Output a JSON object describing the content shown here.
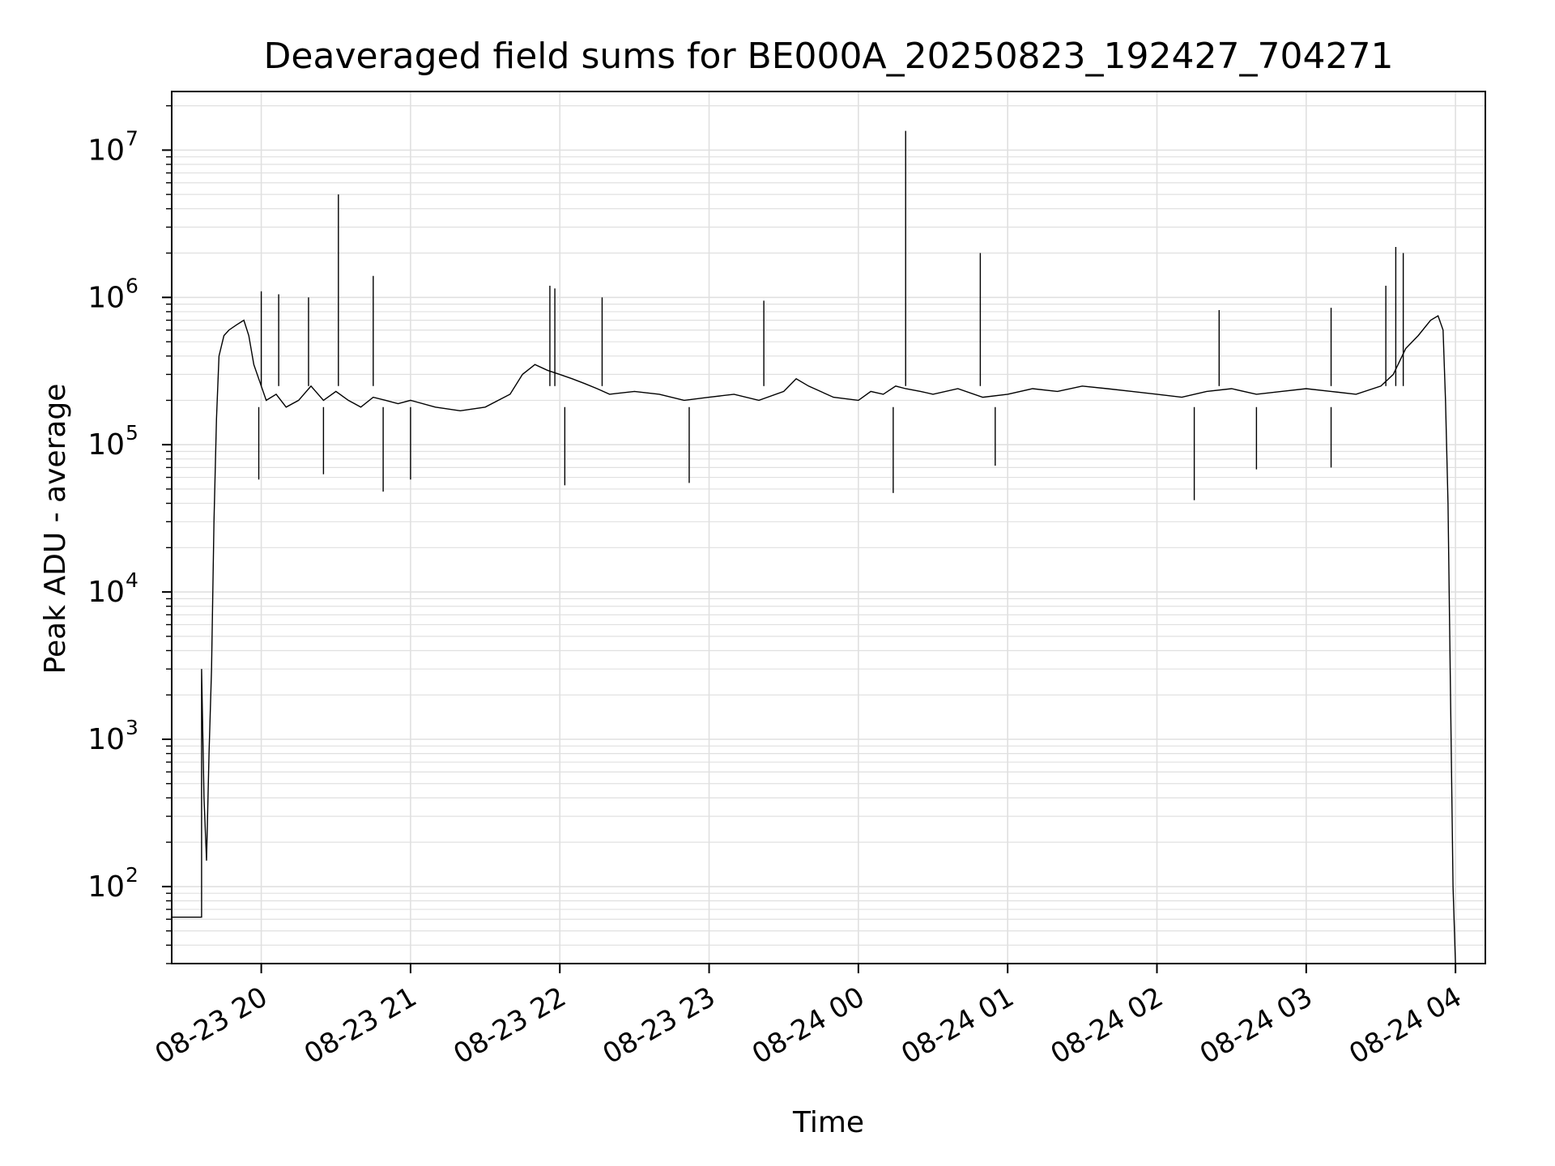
{
  "chart_data": {
    "type": "line",
    "title": "Deaveraged field sums for BE000A_20250823_192427_704271",
    "xlabel": "Time",
    "ylabel": "Peak ADU - average",
    "yscale": "log",
    "xlim": [
      "2025-08-23 19:24",
      "2025-08-24 04:12"
    ],
    "ylim": [
      30,
      25000000
    ],
    "grid": true,
    "line_color": "#000000",
    "grid_color": "#e0e0e0",
    "x_ticks": [
      {
        "value": "2025-08-23 20:00",
        "label": "08-23 20"
      },
      {
        "value": "2025-08-23 21:00",
        "label": "08-23 21"
      },
      {
        "value": "2025-08-23 22:00",
        "label": "08-23 22"
      },
      {
        "value": "2025-08-23 23:00",
        "label": "08-23 23"
      },
      {
        "value": "2025-08-24 00:00",
        "label": "08-24 00"
      },
      {
        "value": "2025-08-24 01:00",
        "label": "08-24 01"
      },
      {
        "value": "2025-08-24 02:00",
        "label": "08-24 02"
      },
      {
        "value": "2025-08-24 03:00",
        "label": "08-24 03"
      },
      {
        "value": "2025-08-24 04:00",
        "label": "08-24 04"
      }
    ],
    "y_ticks": [
      {
        "value": 100,
        "base": "10",
        "exp": "2"
      },
      {
        "value": 1000,
        "base": "10",
        "exp": "3"
      },
      {
        "value": 10000,
        "base": "10",
        "exp": "4"
      },
      {
        "value": 100000,
        "base": "10",
        "exp": "5"
      },
      {
        "value": 1000000,
        "base": "10",
        "exp": "6"
      },
      {
        "value": 10000000,
        "base": "10",
        "exp": "7"
      }
    ],
    "series": [
      {
        "x": [
          "2025-08-23 19:24",
          "2025-08-23 19:36",
          "2025-08-23 19:36",
          "2025-08-23 19:37",
          "2025-08-23 19:38",
          "2025-08-23 19:39",
          "2025-08-23 19:40",
          "2025-08-23 19:41",
          "2025-08-23 19:42",
          "2025-08-23 19:43",
          "2025-08-23 19:45",
          "2025-08-23 19:47",
          "2025-08-23 19:50",
          "2025-08-23 19:53",
          "2025-08-23 19:55",
          "2025-08-23 19:57",
          "2025-08-23 20:00",
          "2025-08-23 20:02",
          "2025-08-23 20:06",
          "2025-08-23 20:10",
          "2025-08-23 20:15",
          "2025-08-23 20:20",
          "2025-08-23 20:25",
          "2025-08-23 20:30",
          "2025-08-23 20:35",
          "2025-08-23 20:40",
          "2025-08-23 20:45",
          "2025-08-23 20:50",
          "2025-08-23 20:55",
          "2025-08-23 21:00",
          "2025-08-23 21:10",
          "2025-08-23 21:20",
          "2025-08-23 21:30",
          "2025-08-23 21:40",
          "2025-08-23 21:45",
          "2025-08-23 21:50",
          "2025-08-23 21:55",
          "2025-08-23 22:00",
          "2025-08-23 22:05",
          "2025-08-23 22:10",
          "2025-08-23 22:15",
          "2025-08-23 22:20",
          "2025-08-23 22:30",
          "2025-08-23 22:40",
          "2025-08-23 22:50",
          "2025-08-23 23:00",
          "2025-08-23 23:10",
          "2025-08-23 23:20",
          "2025-08-23 23:30",
          "2025-08-23 23:35",
          "2025-08-23 23:40",
          "2025-08-23 23:50",
          "2025-08-24 00:00",
          "2025-08-24 00:05",
          "2025-08-24 00:10",
          "2025-08-24 00:15",
          "2025-08-24 00:19",
          "2025-08-24 00:25",
          "2025-08-24 00:30",
          "2025-08-24 00:40",
          "2025-08-24 00:50",
          "2025-08-24 01:00",
          "2025-08-24 01:10",
          "2025-08-24 01:20",
          "2025-08-24 01:30",
          "2025-08-24 01:40",
          "2025-08-24 01:50",
          "2025-08-24 02:00",
          "2025-08-24 02:10",
          "2025-08-24 02:20",
          "2025-08-24 02:30",
          "2025-08-24 02:40",
          "2025-08-24 02:50",
          "2025-08-24 03:00",
          "2025-08-24 03:10",
          "2025-08-24 03:20",
          "2025-08-24 03:30",
          "2025-08-24 03:35",
          "2025-08-24 03:40",
          "2025-08-24 03:45",
          "2025-08-24 03:50",
          "2025-08-24 03:53",
          "2025-08-24 03:55",
          "2025-08-24 03:56",
          "2025-08-24 03:57",
          "2025-08-24 03:58",
          "2025-08-24 03:59",
          "2025-08-24 04:00"
        ],
        "y": [
          62,
          62,
          3000,
          400,
          150,
          800,
          3000,
          30000,
          150000,
          400000,
          550000,
          600000,
          650000,
          700000,
          550000,
          350000,
          250000,
          200000,
          220000,
          180000,
          200000,
          250000,
          200000,
          230000,
          200000,
          180000,
          210000,
          200000,
          190000,
          200000,
          180000,
          170000,
          180000,
          220000,
          300000,
          350000,
          320000,
          300000,
          280000,
          260000,
          240000,
          220000,
          230000,
          220000,
          200000,
          210000,
          220000,
          200000,
          230000,
          280000,
          250000,
          210000,
          200000,
          230000,
          220000,
          250000,
          240000,
          230000,
          220000,
          240000,
          210000,
          220000,
          240000,
          230000,
          250000,
          240000,
          230000,
          220000,
          210000,
          230000,
          240000,
          220000,
          230000,
          240000,
          230000,
          220000,
          250000,
          300000,
          450000,
          550000,
          700000,
          750000,
          600000,
          200000,
          40000,
          2000,
          100,
          30
        ],
        "spikes": [
          {
            "x": "2025-08-23 20:00",
            "y": 1100000
          },
          {
            "x": "2025-08-23 20:07",
            "y": 1050000
          },
          {
            "x": "2025-08-23 20:19",
            "y": 1000000
          },
          {
            "x": "2025-08-23 20:31",
            "y": 5000000
          },
          {
            "x": "2025-08-23 20:45",
            "y": 1400000
          },
          {
            "x": "2025-08-23 21:56",
            "y": 1200000
          },
          {
            "x": "2025-08-23 21:58",
            "y": 1150000
          },
          {
            "x": "2025-08-23 22:17",
            "y": 1000000
          },
          {
            "x": "2025-08-23 23:22",
            "y": 950000
          },
          {
            "x": "2025-08-24 00:19",
            "y": 13500000
          },
          {
            "x": "2025-08-24 00:49",
            "y": 2000000
          },
          {
            "x": "2025-08-24 02:25",
            "y": 820000
          },
          {
            "x": "2025-08-24 03:10",
            "y": 850000
          },
          {
            "x": "2025-08-24 03:32",
            "y": 1200000
          },
          {
            "x": "2025-08-24 03:36",
            "y": 2200000
          },
          {
            "x": "2025-08-24 03:39",
            "y": 2000000
          }
        ],
        "dips": [
          {
            "x": "2025-08-23 19:59",
            "y": 58000
          },
          {
            "x": "2025-08-23 20:25",
            "y": 63000
          },
          {
            "x": "2025-08-23 20:49",
            "y": 48000
          },
          {
            "x": "2025-08-23 21:00",
            "y": 58000
          },
          {
            "x": "2025-08-23 22:02",
            "y": 53000
          },
          {
            "x": "2025-08-23 22:52",
            "y": 55000
          },
          {
            "x": "2025-08-24 00:14",
            "y": 47000
          },
          {
            "x": "2025-08-24 00:55",
            "y": 72000
          },
          {
            "x": "2025-08-24 02:15",
            "y": 42000
          },
          {
            "x": "2025-08-24 02:40",
            "y": 68000
          },
          {
            "x": "2025-08-24 03:10",
            "y": 70000
          }
        ]
      }
    ]
  }
}
